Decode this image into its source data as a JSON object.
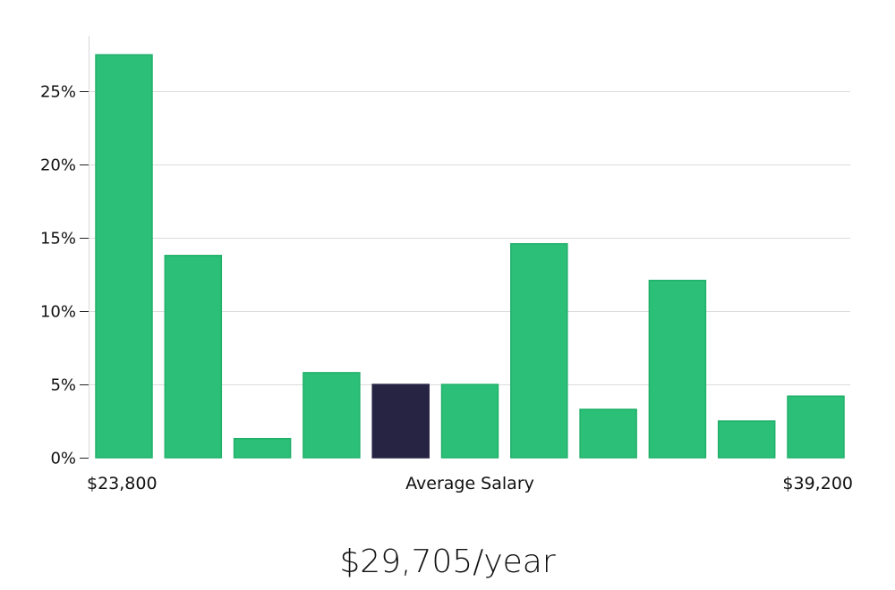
{
  "chart_data": {
    "type": "bar",
    "categories": [
      "1",
      "2",
      "3",
      "4",
      "5",
      "6",
      "7",
      "8",
      "9",
      "10",
      "11"
    ],
    "values": [
      27.5,
      13.8,
      1.3,
      5.8,
      5.0,
      5.0,
      14.6,
      3.3,
      12.1,
      2.5,
      4.2
    ],
    "highlight_index": 4,
    "ylim": [
      0,
      28.8
    ],
    "yticks": [
      0,
      5,
      10,
      15,
      20,
      25
    ],
    "ytick_labels": [
      "0%",
      "5%",
      "10%",
      "15%",
      "20%",
      "25%"
    ],
    "grid": true,
    "x_min_label": "$23,800",
    "x_center_label": "Average Salary",
    "x_max_label": "$39,200",
    "bar_color": "#2bbf77",
    "bar_edge_color": "#21b06a",
    "highlight_color": "#272443"
  },
  "salary_title": "$29,705/year"
}
